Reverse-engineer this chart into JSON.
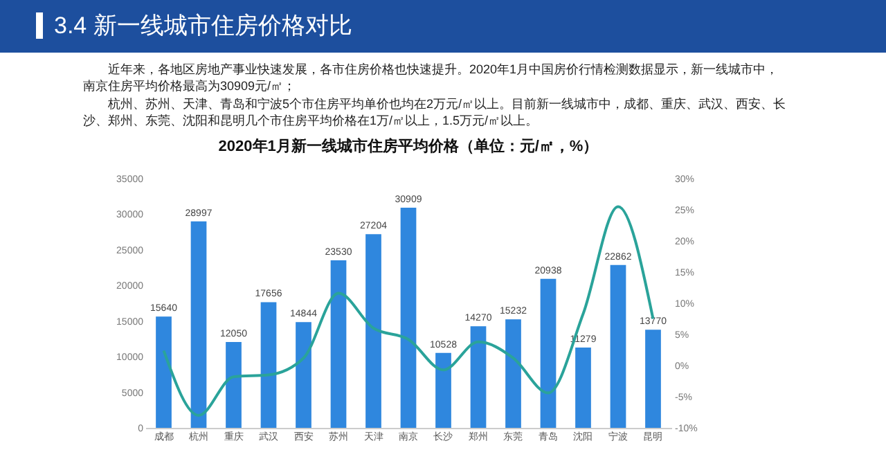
{
  "chart_data": {
    "type": "bar",
    "title": "2020年1月新一线城市住房平均价格（单位：元/㎡，%）",
    "annotations": [
      "3.4 新一线城市住房价格对比",
      "近年来，各地区房地产事业快速发展，各市住房价格也快速提升。2020年1月中国房价行情检测数据显示，新一线城市中，南京住房平均价格最高为30909元/㎡；",
      "杭州、苏州、天津、青岛和宁波5个市住房平均单价也均在2万元/㎡以上。目前新一线城市中，成都、重庆、武汉、西安、长沙、郑州、东莞、沈阳和昆明几个市住房平均价格在1万/㎡以上，1.5万元/㎡以上。"
    ],
    "categories": [
      "成都",
      "杭州",
      "重庆",
      "武汉",
      "西安",
      "苏州",
      "天津",
      "南京",
      "长沙",
      "郑州",
      "东莞",
      "青岛",
      "沈阳",
      "宁波",
      "昆明"
    ],
    "series": [
      {
        "color": "#2f87de",
        "values": [
          15640,
          28997,
          12050,
          17656,
          14844,
          23530,
          27204,
          30909,
          10528,
          14270,
          15232,
          20938,
          11279,
          22862,
          13770
        ],
        "value_labels": [
          "15640",
          "28997",
          "12050",
          "17656",
          "14844",
          "23530",
          "27204",
          "30909",
          "10528",
          "14270",
          "15232",
          "20938",
          "11279",
          "22862",
          "13770"
        ]
      },
      {
        "type": "line",
        "axis": "y2",
        "color": "#2aa39a",
        "values": [
          2.4,
          -8,
          -1.8,
          -1.5,
          1.2,
          11.6,
          6,
          4.2,
          -0.7,
          3.8,
          1.2,
          -4.4,
          8.3,
          25.5,
          7.5
        ]
      }
    ],
    "ylim": [
      0,
      35000
    ],
    "yticks": [
      0,
      5000,
      10000,
      15000,
      20000,
      25000,
      30000,
      35000
    ],
    "y2lim": [
      -10,
      30
    ],
    "y2ticks": [
      {
        "value": -10,
        "label": "-10%"
      },
      {
        "value": -5,
        "label": "-5%"
      },
      {
        "value": 0,
        "label": "0%"
      },
      {
        "value": 5,
        "label": "5%"
      },
      {
        "value": 10,
        "label": "10%"
      },
      {
        "value": 15,
        "label": "15%"
      },
      {
        "value": 20,
        "label": "20%"
      },
      {
        "value": 25,
        "label": "25%"
      },
      {
        "value": 30,
        "label": "30%"
      }
    ]
  }
}
